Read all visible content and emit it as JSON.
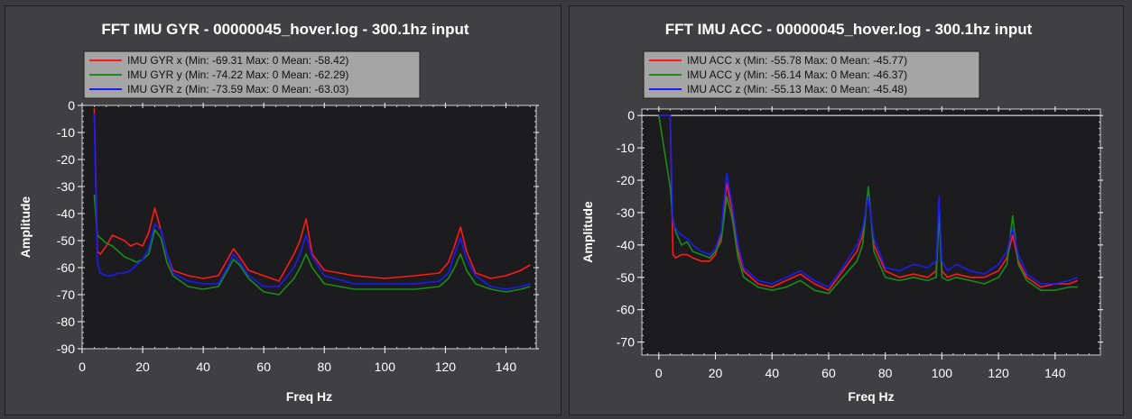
{
  "chart_data": [
    {
      "type": "line",
      "title": "FFT IMU GYR - 00000045_hover.log - 300.1hz input",
      "xlabel": "Freq Hz",
      "ylabel": "Amplitude",
      "xlim": [
        0,
        150
      ],
      "ylim": [
        -90,
        0
      ],
      "xticks": [
        0,
        20,
        40,
        60,
        80,
        100,
        120,
        140
      ],
      "yticks": [
        0,
        -10,
        -20,
        -30,
        -40,
        -50,
        -60,
        -70,
        -80,
        -90
      ],
      "legend_position": "top-left",
      "grid": false,
      "x": [
        4,
        5,
        6,
        8,
        10,
        12,
        14,
        16,
        18,
        20,
        22,
        24,
        26,
        28,
        30,
        35,
        40,
        45,
        48,
        50,
        52,
        55,
        60,
        65,
        70,
        72,
        74,
        76,
        80,
        90,
        100,
        110,
        118,
        121,
        123,
        125,
        127,
        130,
        135,
        140,
        145,
        148
      ],
      "series": [
        {
          "name": "IMU GYR x (Min: -69.31 Max: 0 Mean: -58.42)",
          "color": "#ff1a1a",
          "values": [
            -1,
            -54,
            -55,
            -52,
            -48,
            -49,
            -50,
            -52,
            -51,
            -52,
            -47,
            -38,
            -46,
            -55,
            -61,
            -63,
            -64,
            -63,
            -57,
            -53,
            -56,
            -61,
            -63,
            -65,
            -55,
            -50,
            -42,
            -55,
            -61,
            -63,
            -64,
            -63,
            -62,
            -58,
            -52,
            -45,
            -54,
            -62,
            -64,
            -63,
            -61,
            -59
          ]
        },
        {
          "name": "IMU GYR y (Min: -74.22 Max: 0 Mean: -62.29)",
          "color": "#1a8c1a",
          "values": [
            -33,
            -48,
            -49,
            -51,
            -52,
            -54,
            -56,
            -57,
            -58,
            -57,
            -55,
            -46,
            -49,
            -58,
            -63,
            -67,
            -68,
            -67,
            -61,
            -57,
            -59,
            -64,
            -69,
            -70,
            -64,
            -60,
            -55,
            -60,
            -66,
            -68,
            -68,
            -68,
            -67,
            -64,
            -60,
            -55,
            -61,
            -66,
            -68,
            -69,
            -68,
            -67
          ]
        },
        {
          "name": "IMU GYR z (Min: -73.59 Max: 0 Mean: -63.03)",
          "color": "#1a1aff",
          "values": [
            -3,
            -58,
            -62,
            -63,
            -63,
            -62,
            -62,
            -61,
            -59,
            -57,
            -53,
            -44,
            -46,
            -55,
            -62,
            -65,
            -66,
            -66,
            -60,
            -55,
            -58,
            -63,
            -67,
            -67,
            -60,
            -55,
            -48,
            -56,
            -63,
            -66,
            -66,
            -66,
            -65,
            -62,
            -55,
            -49,
            -57,
            -63,
            -67,
            -68,
            -67,
            -66
          ]
        }
      ]
    },
    {
      "type": "line",
      "title": "FFT IMU ACC - 00000045_hover.log - 300.1hz input",
      "xlabel": "Freq Hz",
      "ylabel": "Amplitude",
      "xlim": [
        -6,
        156
      ],
      "ylim": [
        -74,
        2
      ],
      "xticks": [
        0,
        20,
        40,
        60,
        80,
        100,
        120,
        140
      ],
      "yticks": [
        0,
        -10,
        -20,
        -30,
        -40,
        -50,
        -60,
        -70
      ],
      "legend_position": "top-left",
      "grid": false,
      "x": [
        0,
        4,
        5,
        6,
        8,
        10,
        12,
        15,
        18,
        20,
        22,
        24,
        26,
        28,
        30,
        35,
        40,
        45,
        50,
        55,
        60,
        65,
        70,
        72,
        74,
        76,
        80,
        85,
        90,
        95,
        98,
        99,
        100,
        102,
        105,
        110,
        115,
        120,
        123,
        125,
        127,
        130,
        135,
        140,
        145,
        148
      ],
      "series": [
        {
          "name": "IMU ACC x (Min: -55.78 Max: 0 Mean: -45.77)",
          "color": "#ff1a1a",
          "values": [
            0,
            0,
            -43,
            -44,
            -43,
            -43,
            -44,
            -45,
            -45,
            -43,
            -37,
            -21,
            -30,
            -42,
            -48,
            -52,
            -53,
            -51,
            -49,
            -52,
            -54,
            -48,
            -42,
            -37,
            -23,
            -40,
            -48,
            -50,
            -49,
            -50,
            -48,
            -28,
            -48,
            -50,
            -49,
            -50,
            -50,
            -48,
            -44,
            -37,
            -45,
            -50,
            -53,
            -52,
            -52,
            -51
          ]
        },
        {
          "name": "IMU ACC y (Min: -56.14 Max: 0 Mean: -46.37)",
          "color": "#1a8c1a",
          "values": [
            0,
            -22,
            -32,
            -36,
            -40,
            -39,
            -42,
            -43,
            -44,
            -42,
            -39,
            -25,
            -32,
            -44,
            -50,
            -53,
            -54,
            -53,
            -51,
            -54,
            -55,
            -50,
            -45,
            -40,
            -22,
            -42,
            -50,
            -51,
            -50,
            -51,
            -50,
            -30,
            -50,
            -51,
            -50,
            -51,
            -52,
            -50,
            -46,
            -31,
            -46,
            -51,
            -54,
            -54,
            -53,
            -53
          ]
        },
        {
          "name": "IMU ACC z (Min: -55.13 Max: 0 Mean: -45.48)",
          "color": "#1a1aff",
          "values": [
            0,
            0,
            -33,
            -35,
            -37,
            -38,
            -40,
            -42,
            -43,
            -41,
            -36,
            -18,
            -28,
            -40,
            -47,
            -51,
            -52,
            -50,
            -48,
            -51,
            -53,
            -47,
            -40,
            -35,
            -25,
            -38,
            -47,
            -48,
            -46,
            -47,
            -45,
            -25,
            -45,
            -48,
            -46,
            -48,
            -49,
            -46,
            -42,
            -35,
            -43,
            -49,
            -52,
            -52,
            -51,
            -50
          ]
        }
      ]
    }
  ]
}
